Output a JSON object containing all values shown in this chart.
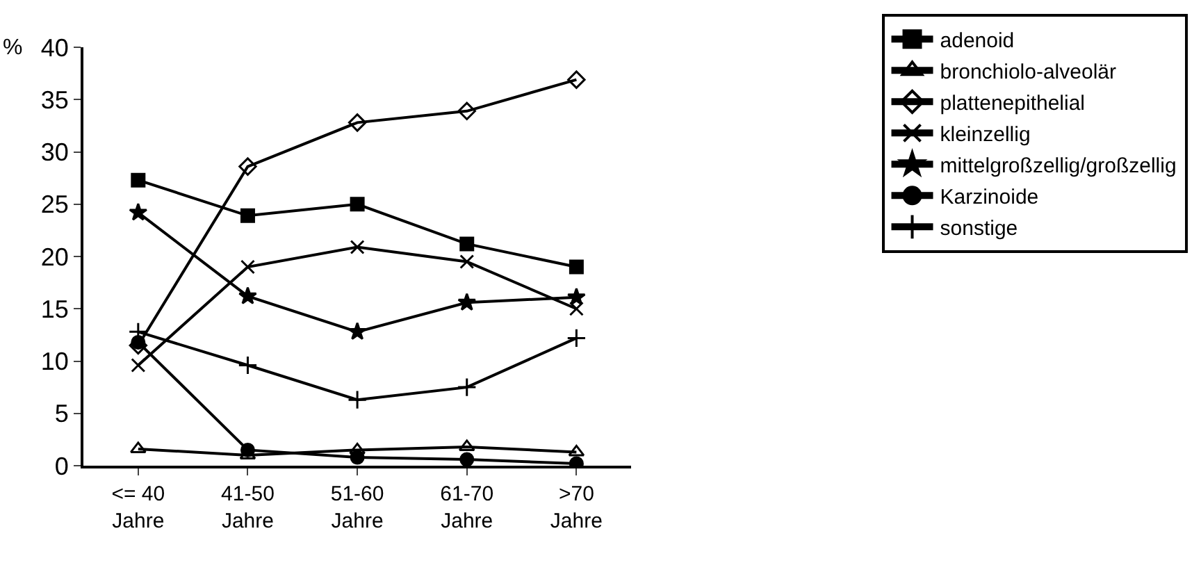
{
  "chart_data": {
    "type": "line",
    "ylabel": "%",
    "categories": [
      "<= 40 Jahre",
      "41-50 Jahre",
      "51-60 Jahre",
      "61-70 Jahre",
      ">70 Jahre"
    ],
    "series": [
      {
        "name": "adenoid",
        "color": "#000000",
        "marker": "square",
        "values": [
          27.3,
          23.9,
          25.0,
          21.2,
          19.0
        ]
      },
      {
        "name": "bronchiolo-alveolär",
        "color": "#000000",
        "marker": "triangle",
        "values": [
          1.6,
          1.0,
          1.5,
          1.8,
          1.3
        ]
      },
      {
        "name": "plattenepithelial",
        "color": "#000000",
        "marker": "diamond",
        "values": [
          11.5,
          28.6,
          32.8,
          33.9,
          36.9
        ]
      },
      {
        "name": "kleinzellig",
        "color": "#000000",
        "marker": "cross",
        "values": [
          9.6,
          19.0,
          20.9,
          19.5,
          15.0
        ]
      },
      {
        "name": "mittelgroßzellig/großzellig",
        "color": "#000000",
        "marker": "star",
        "values": [
          24.2,
          16.2,
          12.8,
          15.6,
          16.1
        ]
      },
      {
        "name": "Karzinoide",
        "color": "#000000",
        "marker": "circle",
        "values": [
          11.8,
          1.5,
          0.8,
          0.6,
          0.2
        ]
      },
      {
        "name": "sonstige",
        "color": "#000000",
        "marker": "plus",
        "values": [
          12.8,
          9.6,
          6.3,
          7.5,
          12.2
        ]
      }
    ],
    "ylim": [
      0,
      40
    ],
    "yticks": [
      0,
      5,
      10,
      15,
      20,
      25,
      30,
      35,
      40
    ],
    "legend": "right",
    "line_style": "solid"
  }
}
